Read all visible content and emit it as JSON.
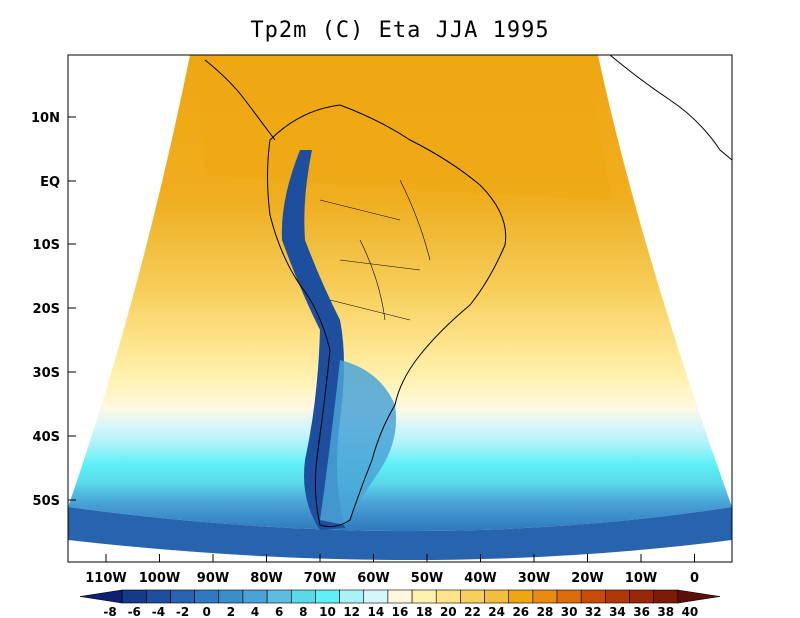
{
  "title": "Tp2m (C) Eta JJA 1995",
  "map": {
    "projection": "regional-conic",
    "variable": "2m temperature",
    "lat_labels": [
      "10N",
      "EQ",
      "10S",
      "20S",
      "30S",
      "40S",
      "50S"
    ],
    "lon_labels": [
      "110W",
      "100W",
      "90W",
      "80W",
      "70W",
      "60W",
      "50W",
      "40W",
      "30W",
      "20W",
      "10W",
      "0"
    ]
  },
  "colorbar": {
    "labels": [
      "-8",
      "-6",
      "-4",
      "-2",
      "0",
      "2",
      "4",
      "6",
      "8",
      "10",
      "12",
      "14",
      "16",
      "18",
      "20",
      "22",
      "24",
      "26",
      "28",
      "30",
      "32",
      "34",
      "36",
      "38",
      "40"
    ],
    "colors": [
      "#0c1f70",
      "#143a8a",
      "#1e4f9e",
      "#2864ae",
      "#2f79be",
      "#3a8fcb",
      "#4aa3d6",
      "#5cbce2",
      "#59d8ea",
      "#5ef0f5",
      "#a8f2f8",
      "#d7f6fb",
      "#fff8e0",
      "#fff2b0",
      "#fde38a",
      "#f7cf5c",
      "#f1be3e",
      "#eea712",
      "#e88b0e",
      "#dd6a0b",
      "#c84b0a",
      "#b13708",
      "#972707",
      "#7d1b08",
      "#5a1008"
    ]
  }
}
